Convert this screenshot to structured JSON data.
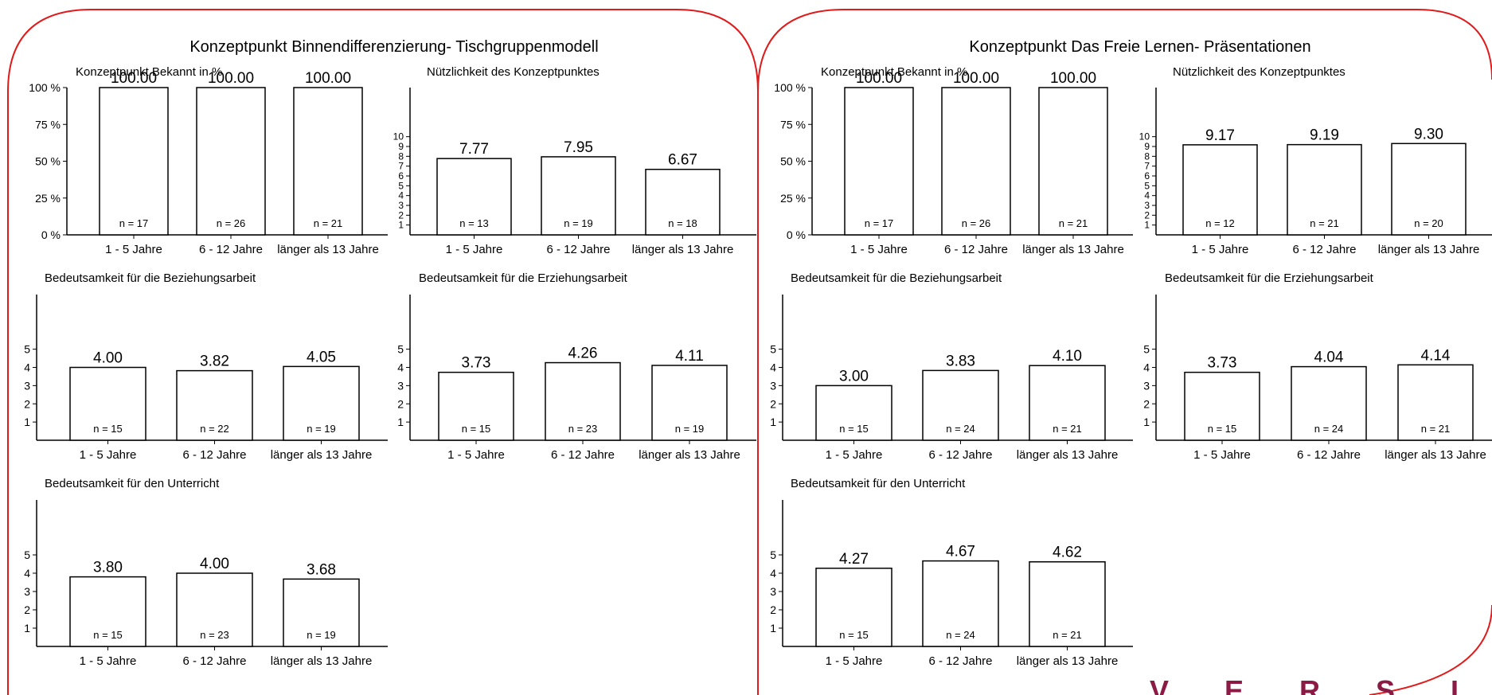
{
  "logo_text": "V E R S I T Ä T",
  "colors": {
    "frame": "#e01b1b",
    "bar_stroke": "#000000",
    "logo": "#8b1a45"
  },
  "panels": [
    {
      "title": "Konzeptpunkt Binnendifferenzierung- Tischgruppenmodell",
      "charts": [
        {
          "type": "bar",
          "title": "Konzeptpunkt Bekannt in %",
          "categories": [
            "1 - 5 Jahre",
            "6 - 12 Jahre",
            "länger als 13 Jahre"
          ],
          "values": [
            100,
            100,
            100
          ],
          "value_labels": [
            "100.00",
            "100.00",
            "100.00"
          ],
          "n_labels": [
            "n = 17",
            "n = 26",
            "n = 21"
          ],
          "ylim": [
            0,
            100
          ],
          "yticks": [
            0,
            25,
            50,
            75,
            100
          ],
          "ytick_labels": [
            "0 %",
            "25 %",
            "50 %",
            "75 %",
            "100 %"
          ]
        },
        {
          "type": "bar",
          "title": "Nützlichkeit des Konzeptpunktes",
          "categories": [
            "1 - 5 Jahre",
            "6 - 12 Jahre",
            "länger als 13 Jahre"
          ],
          "values": [
            7.77,
            7.95,
            6.67
          ],
          "value_labels": [
            "7.77",
            "7.95",
            "6.67"
          ],
          "n_labels": [
            "n = 13",
            "n = 19",
            "n = 18"
          ],
          "ylim": [
            0,
            15
          ],
          "yticks": [
            1,
            2,
            3,
            4,
            5,
            6,
            7,
            8,
            9,
            10
          ],
          "ytick_labels": [
            "1",
            "2",
            "3",
            "4",
            "5",
            "6",
            "7",
            "8",
            "9",
            "10"
          ]
        },
        {
          "type": "bar",
          "title": "Bedeutsamkeit für die Beziehungsarbeit",
          "categories": [
            "1 - 5 Jahre",
            "6 - 12 Jahre",
            "länger als 13 Jahre"
          ],
          "values": [
            4.0,
            3.82,
            4.05
          ],
          "value_labels": [
            "4.00",
            "3.82",
            "4.05"
          ],
          "n_labels": [
            "n = 15",
            "n = 22",
            "n = 19"
          ],
          "ylim": [
            0,
            8
          ],
          "yticks": [
            1,
            2,
            3,
            4,
            5
          ],
          "ytick_labels": [
            "1",
            "2",
            "3",
            "4",
            "5"
          ]
        },
        {
          "type": "bar",
          "title": "Bedeutsamkeit für die Erziehungsarbeit",
          "categories": [
            "1 - 5 Jahre",
            "6 - 12 Jahre",
            "länger als 13 Jahre"
          ],
          "values": [
            3.73,
            4.26,
            4.11
          ],
          "value_labels": [
            "3.73",
            "4.26",
            "4.11"
          ],
          "n_labels": [
            "n = 15",
            "n = 23",
            "n = 19"
          ],
          "ylim": [
            0,
            8
          ],
          "yticks": [
            1,
            2,
            3,
            4,
            5
          ],
          "ytick_labels": [
            "1",
            "2",
            "3",
            "4",
            "5"
          ]
        },
        {
          "type": "bar",
          "title": "Bedeutsamkeit für den Unterricht",
          "categories": [
            "1 - 5 Jahre",
            "6 - 12 Jahre",
            "länger als 13 Jahre"
          ],
          "values": [
            3.8,
            4.0,
            3.68
          ],
          "value_labels": [
            "3.80",
            "4.00",
            "3.68"
          ],
          "n_labels": [
            "n = 15",
            "n = 23",
            "n = 19"
          ],
          "ylim": [
            0,
            8
          ],
          "yticks": [
            1,
            2,
            3,
            4,
            5
          ],
          "ytick_labels": [
            "1",
            "2",
            "3",
            "4",
            "5"
          ]
        }
      ]
    },
    {
      "title": "Konzeptpunkt Das Freie Lernen- Präsentationen",
      "charts": [
        {
          "type": "bar",
          "title": "Konzeptpunkt Bekannt in %",
          "categories": [
            "1 - 5 Jahre",
            "6 - 12 Jahre",
            "länger als 13 Jahre"
          ],
          "values": [
            100,
            100,
            100
          ],
          "value_labels": [
            "100.00",
            "100.00",
            "100.00"
          ],
          "n_labels": [
            "n = 17",
            "n = 26",
            "n = 21"
          ],
          "ylim": [
            0,
            100
          ],
          "yticks": [
            0,
            25,
            50,
            75,
            100
          ],
          "ytick_labels": [
            "0 %",
            "25 %",
            "50 %",
            "75 %",
            "100 %"
          ]
        },
        {
          "type": "bar",
          "title": "Nützlichkeit des Konzeptpunktes",
          "categories": [
            "1 - 5 Jahre",
            "6 - 12 Jahre",
            "länger als 13 Jahre"
          ],
          "values": [
            9.17,
            9.19,
            9.3
          ],
          "value_labels": [
            "9.17",
            "9.19",
            "9.30"
          ],
          "n_labels": [
            "n = 12",
            "n = 21",
            "n = 20"
          ],
          "ylim": [
            0,
            15
          ],
          "yticks": [
            1,
            2,
            3,
            4,
            5,
            6,
            7,
            8,
            9,
            10
          ],
          "ytick_labels": [
            "1",
            "2",
            "3",
            "4",
            "5",
            "6",
            "7",
            "8",
            "9",
            "10"
          ]
        },
        {
          "type": "bar",
          "title": "Bedeutsamkeit für die Beziehungsarbeit",
          "categories": [
            "1 - 5 Jahre",
            "6 - 12 Jahre",
            "länger als 13 Jahre"
          ],
          "values": [
            3.0,
            3.83,
            4.1
          ],
          "value_labels": [
            "3.00",
            "3.83",
            "4.10"
          ],
          "n_labels": [
            "n = 15",
            "n = 24",
            "n = 21"
          ],
          "ylim": [
            0,
            8
          ],
          "yticks": [
            1,
            2,
            3,
            4,
            5
          ],
          "ytick_labels": [
            "1",
            "2",
            "3",
            "4",
            "5"
          ]
        },
        {
          "type": "bar",
          "title": "Bedeutsamkeit für die Erziehungsarbeit",
          "categories": [
            "1 - 5 Jahre",
            "6 - 12 Jahre",
            "länger als 13 Jahre"
          ],
          "values": [
            3.73,
            4.04,
            4.14
          ],
          "value_labels": [
            "3.73",
            "4.04",
            "4.14"
          ],
          "n_labels": [
            "n = 15",
            "n = 24",
            "n = 21"
          ],
          "ylim": [
            0,
            8
          ],
          "yticks": [
            1,
            2,
            3,
            4,
            5
          ],
          "ytick_labels": [
            "1",
            "2",
            "3",
            "4",
            "5"
          ]
        },
        {
          "type": "bar",
          "title": "Bedeutsamkeit für den Unterricht",
          "categories": [
            "1 - 5 Jahre",
            "6 - 12 Jahre",
            "länger als 13 Jahre"
          ],
          "values": [
            4.27,
            4.67,
            4.62
          ],
          "value_labels": [
            "4.27",
            "4.67",
            "4.62"
          ],
          "n_labels": [
            "n = 15",
            "n = 24",
            "n = 21"
          ],
          "ylim": [
            0,
            8
          ],
          "yticks": [
            1,
            2,
            3,
            4,
            5
          ],
          "ytick_labels": [
            "1",
            "2",
            "3",
            "4",
            "5"
          ]
        }
      ]
    }
  ]
}
